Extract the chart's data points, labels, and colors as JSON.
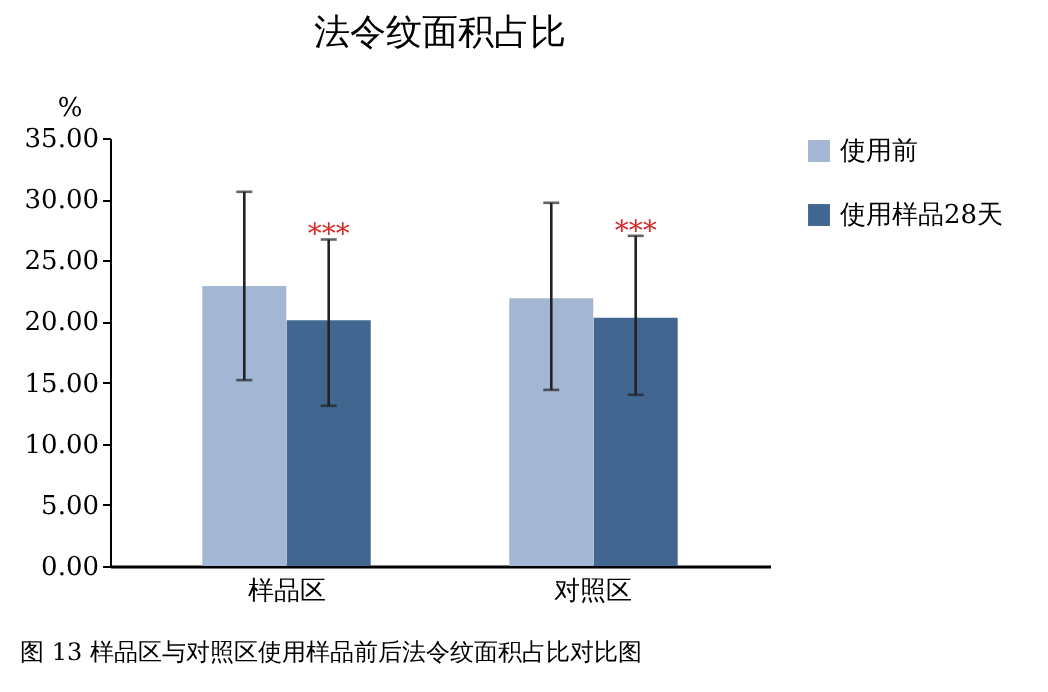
{
  "chart_data": {
    "type": "bar",
    "title": "法令纹面积占比",
    "ylabel": "%",
    "categories": [
      "样品区",
      "对照区"
    ],
    "series": [
      {
        "name": "使用前",
        "color": "#a3b6d3",
        "values": [
          22.9,
          21.9
        ],
        "errors": [
          [
            15.2,
            30.6
          ],
          [
            14.4,
            29.7
          ]
        ]
      },
      {
        "name": "使用样品28天",
        "color": "#41668f",
        "values": [
          20.1,
          20.3
        ],
        "errors": [
          [
            13.1,
            26.7
          ],
          [
            14.0,
            27.0
          ]
        ]
      }
    ],
    "ylim": [
      0,
      35
    ],
    "yticks": [
      {
        "value": 0,
        "label": "0.00"
      },
      {
        "value": 5,
        "label": "5.00"
      },
      {
        "value": 10,
        "label": "10.00"
      },
      {
        "value": 15,
        "label": "15.00"
      },
      {
        "value": 20,
        "label": "20.00"
      },
      {
        "value": 25,
        "label": "25.00"
      },
      {
        "value": 30,
        "label": "30.00"
      },
      {
        "value": 35,
        "label": "35.00"
      }
    ],
    "annotations": [
      "***",
      "***",
      "图 13  样品区与对照区使用样品前后法令纹面积占比对比图"
    ],
    "grid": false,
    "legend": "right"
  }
}
